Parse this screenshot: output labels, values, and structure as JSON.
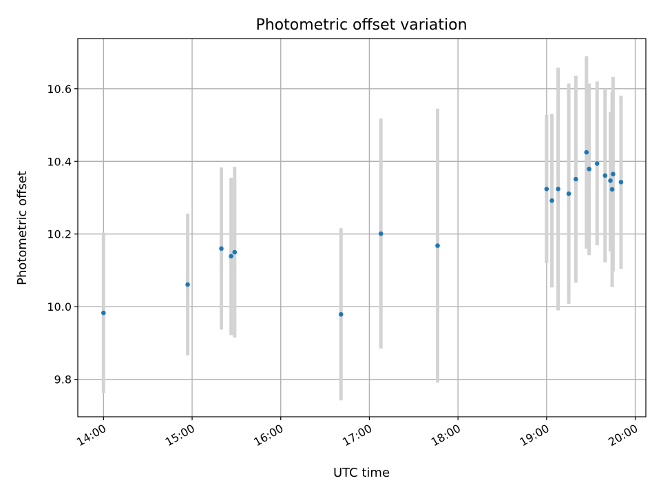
{
  "chart_data": {
    "type": "scatter",
    "title": "Photometric offset variation",
    "xlabel": "UTC time",
    "ylabel": "Photometric offset",
    "x_unit": "hour (UTC)",
    "xlim": [
      13.71,
      20.12
    ],
    "ylim": [
      9.697,
      10.738
    ],
    "x_ticks": [
      {
        "value": 14,
        "label": "14:00"
      },
      {
        "value": 15,
        "label": "15:00"
      },
      {
        "value": 16,
        "label": "16:00"
      },
      {
        "value": 17,
        "label": "17:00"
      },
      {
        "value": 18,
        "label": "18:00"
      },
      {
        "value": 19,
        "label": "19:00"
      },
      {
        "value": 20,
        "label": "20:00"
      }
    ],
    "y_ticks": [
      {
        "value": 9.8,
        "label": "9.8"
      },
      {
        "value": 10.0,
        "label": "10.0"
      },
      {
        "value": 10.2,
        "label": "10.2"
      },
      {
        "value": 10.4,
        "label": "10.4"
      },
      {
        "value": 10.6,
        "label": "10.6"
      }
    ],
    "grid": true,
    "point_color": "#1f77b4",
    "errorbar_color": "#d3d3d3",
    "points": [
      {
        "x": 14.0,
        "y": 9.983,
        "ylow": 9.762,
        "yhigh": 10.204
      },
      {
        "x": 14.95,
        "y": 10.061,
        "ylow": 9.866,
        "yhigh": 10.256
      },
      {
        "x": 15.33,
        "y": 10.16,
        "ylow": 9.937,
        "yhigh": 10.383
      },
      {
        "x": 15.44,
        "y": 10.139,
        "ylow": 9.922,
        "yhigh": 10.355
      },
      {
        "x": 15.48,
        "y": 10.15,
        "ylow": 9.915,
        "yhigh": 10.385
      },
      {
        "x": 16.68,
        "y": 9.979,
        "ylow": 9.742,
        "yhigh": 10.216
      },
      {
        "x": 17.13,
        "y": 10.201,
        "ylow": 9.885,
        "yhigh": 10.518
      },
      {
        "x": 17.77,
        "y": 10.168,
        "ylow": 9.791,
        "yhigh": 10.545
      },
      {
        "x": 19.0,
        "y": 10.324,
        "ylow": 10.12,
        "yhigh": 10.528
      },
      {
        "x": 19.06,
        "y": 10.292,
        "ylow": 10.053,
        "yhigh": 10.531
      },
      {
        "x": 19.13,
        "y": 10.324,
        "ylow": 9.99,
        "yhigh": 10.658
      },
      {
        "x": 19.25,
        "y": 10.311,
        "ylow": 10.008,
        "yhigh": 10.614
      },
      {
        "x": 19.33,
        "y": 10.351,
        "ylow": 10.066,
        "yhigh": 10.636
      },
      {
        "x": 19.45,
        "y": 10.425,
        "ylow": 10.16,
        "yhigh": 10.69
      },
      {
        "x": 19.48,
        "y": 10.379,
        "ylow": 10.142,
        "yhigh": 10.614
      },
      {
        "x": 19.57,
        "y": 10.394,
        "ylow": 10.169,
        "yhigh": 10.62
      },
      {
        "x": 19.66,
        "y": 10.361,
        "ylow": 10.122,
        "yhigh": 10.6
      },
      {
        "x": 19.72,
        "y": 10.347,
        "ylow": 10.152,
        "yhigh": 10.536
      },
      {
        "x": 19.74,
        "y": 10.323,
        "ylow": 10.054,
        "yhigh": 10.592
      },
      {
        "x": 19.75,
        "y": 10.365,
        "ylow": 10.097,
        "yhigh": 10.632
      },
      {
        "x": 19.84,
        "y": 10.343,
        "ylow": 10.104,
        "yhigh": 10.581
      }
    ]
  }
}
